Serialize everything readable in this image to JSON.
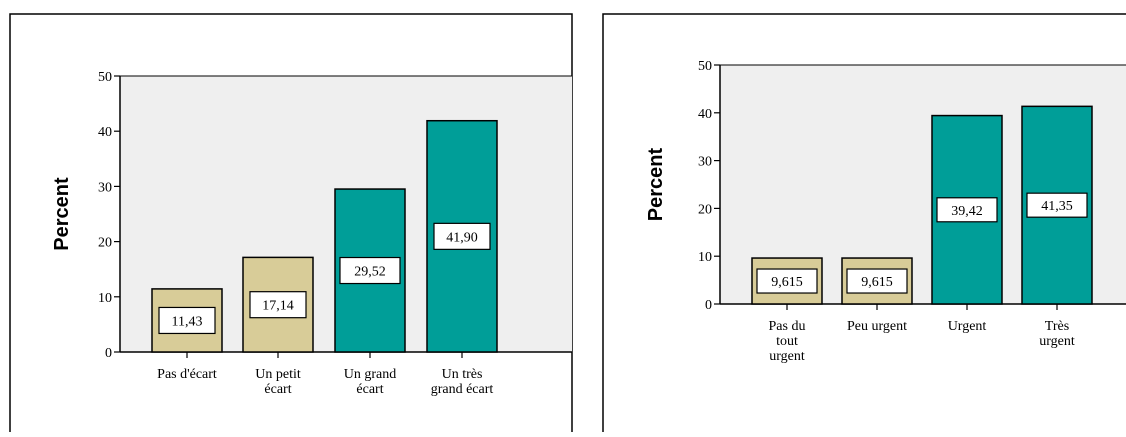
{
  "chart_data": [
    {
      "type": "bar",
      "ylabel": "Percent",
      "ylim": [
        0,
        50
      ],
      "yticks": [
        0,
        10,
        20,
        30,
        40,
        50
      ],
      "grid": false,
      "categories": [
        [
          "Pas d'écart"
        ],
        [
          "Un petit",
          "écart"
        ],
        [
          "Un grand",
          "écart"
        ],
        [
          "Un très",
          "grand écart"
        ]
      ],
      "values": [
        11.43,
        17.14,
        29.52,
        41.9
      ],
      "labels": [
        "11,43",
        "17,14",
        "29,52",
        "41,90"
      ],
      "colors": [
        "#d8cc98",
        "#d8cc98",
        "#009e98",
        "#009e98"
      ]
    },
    {
      "type": "bar",
      "ylabel": "Percent",
      "ylim": [
        0,
        50
      ],
      "yticks": [
        0,
        10,
        20,
        30,
        40,
        50
      ],
      "grid": false,
      "categories": [
        [
          "Pas du",
          "tout",
          "urgent"
        ],
        [
          "Peu urgent"
        ],
        [
          "Urgent"
        ],
        [
          "Très",
          "urgent"
        ]
      ],
      "values": [
        9.615,
        9.615,
        39.42,
        41.35
      ],
      "labels": [
        "9,615",
        "9,615",
        "39,42",
        "41,35"
      ],
      "colors": [
        "#d8cc98",
        "#d8cc98",
        "#009e98",
        "#009e98"
      ]
    }
  ]
}
